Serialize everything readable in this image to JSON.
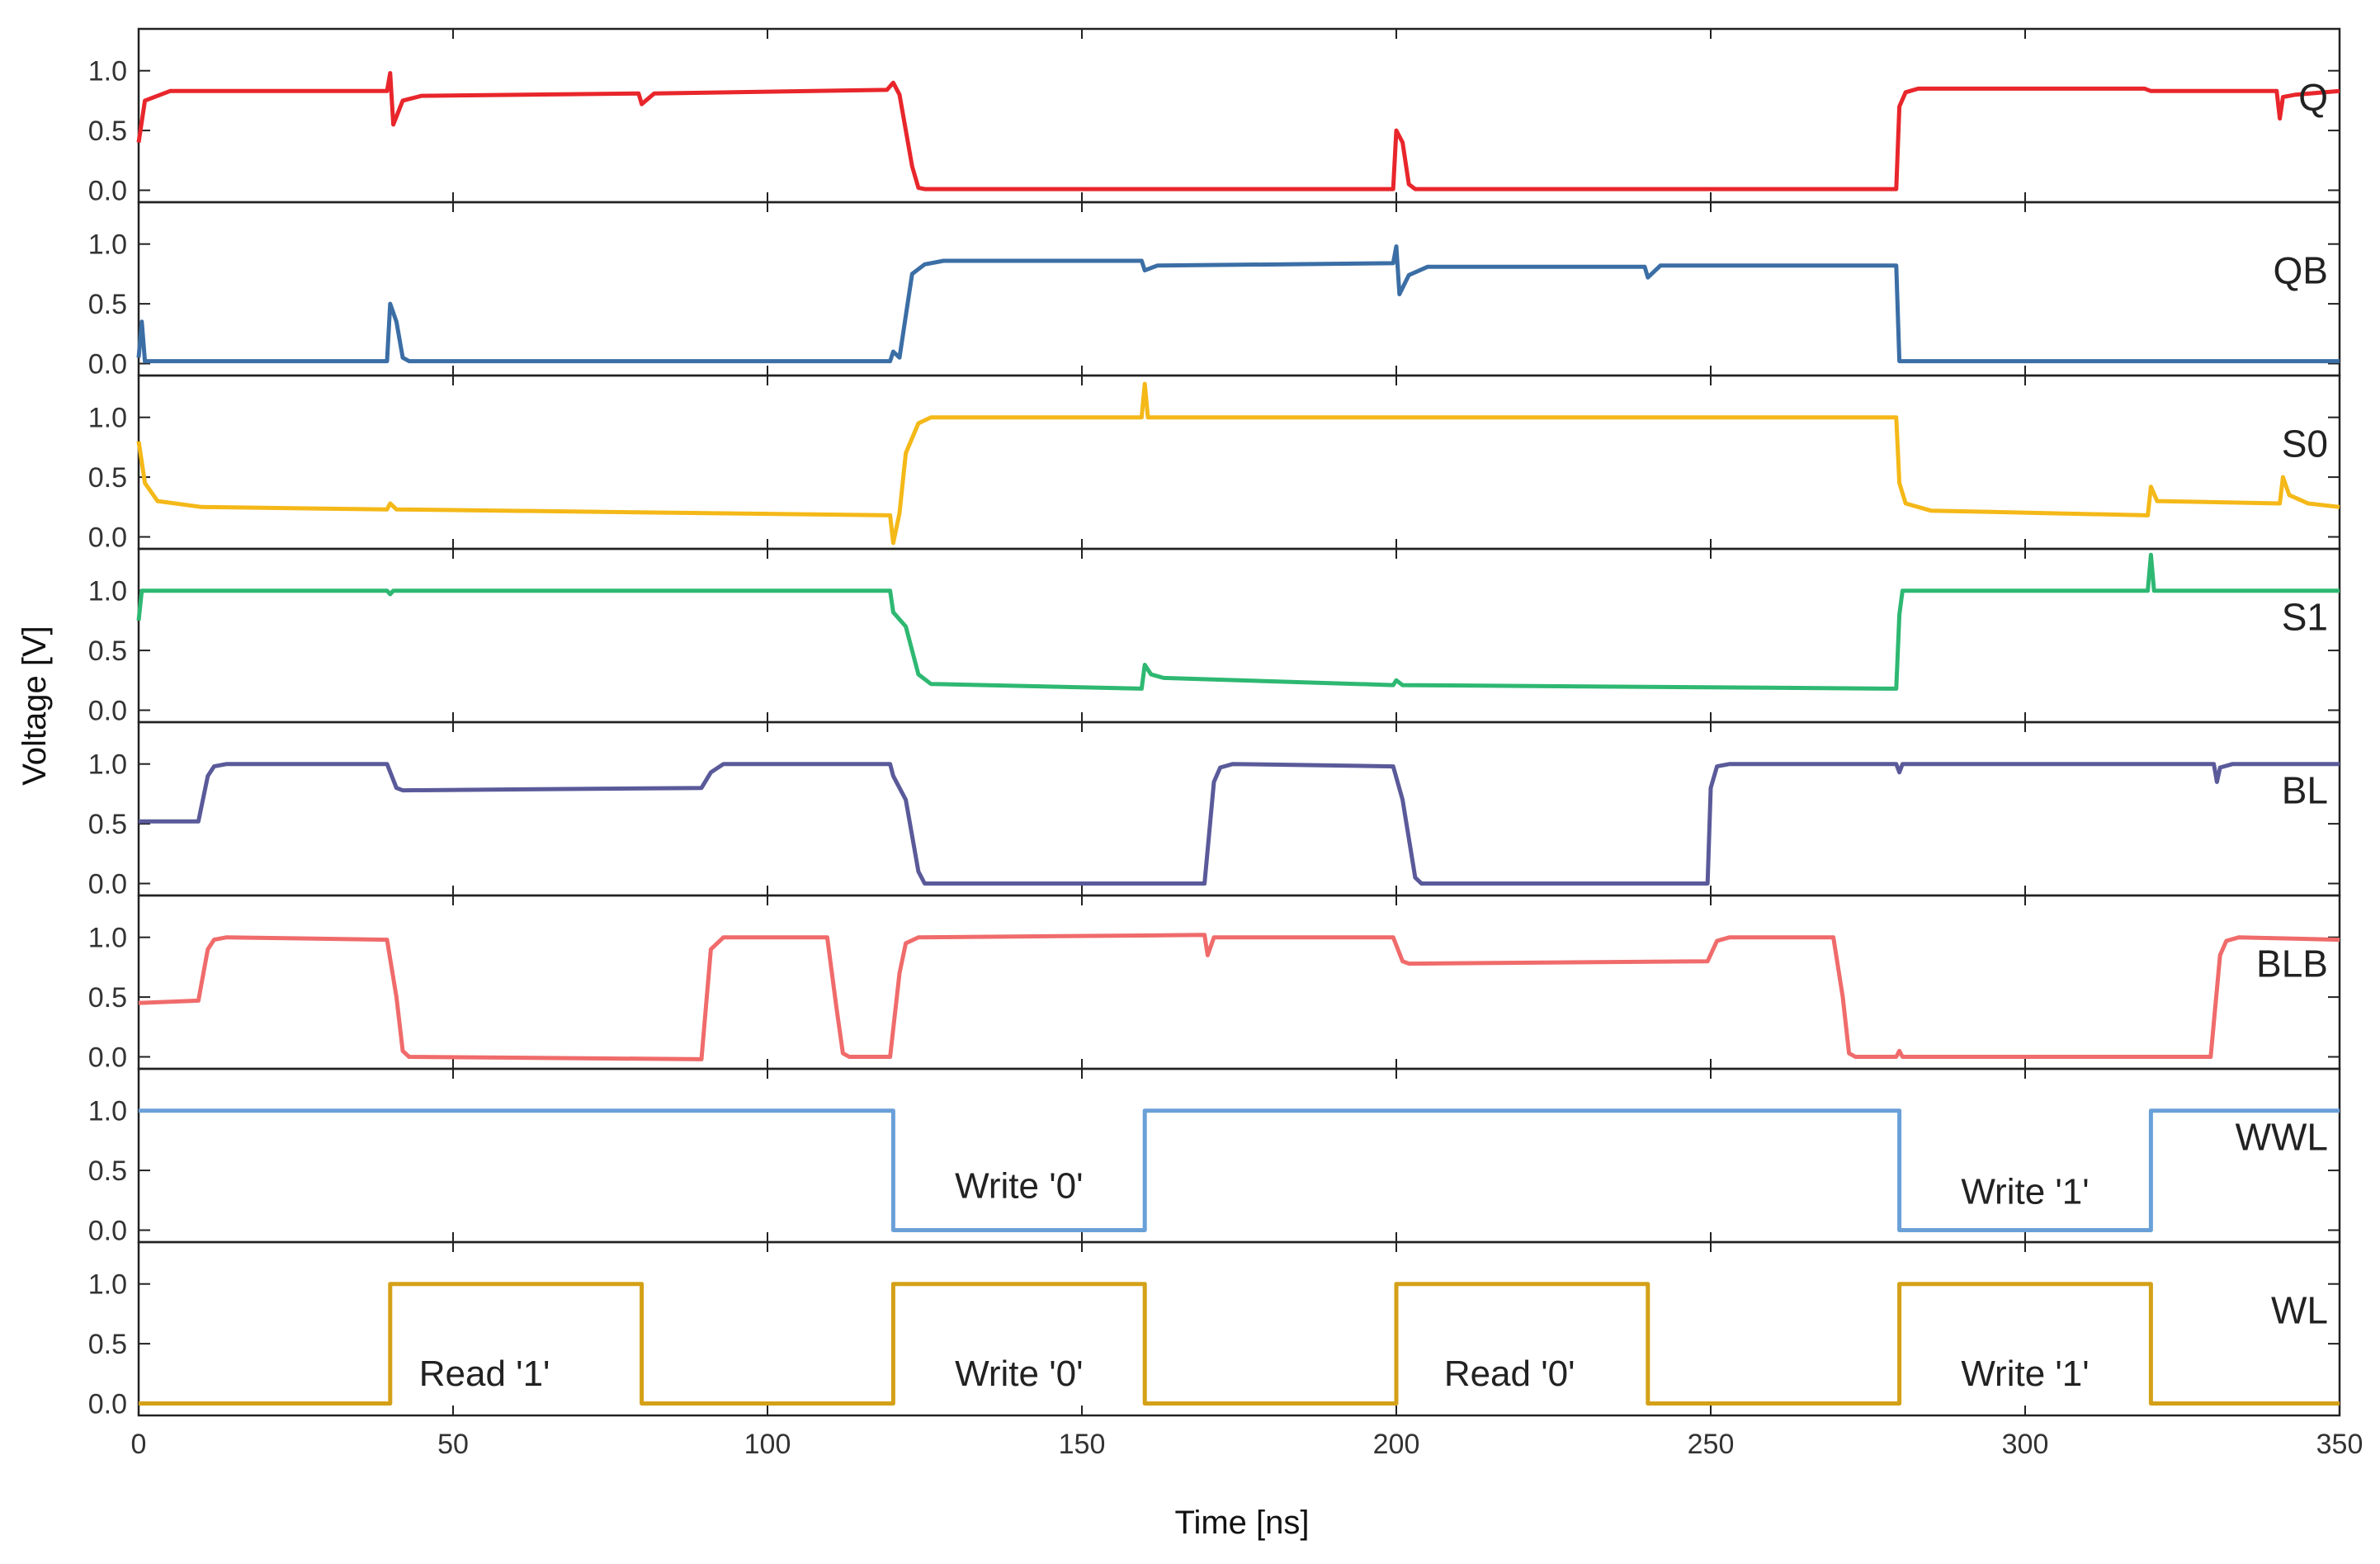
{
  "chart_data": {
    "type": "line",
    "title": "",
    "xlabel": "Time [ns]",
    "ylabel": "Voltage [V]",
    "xlim": [
      0,
      350
    ],
    "ylim": [
      -0.1,
      1.35
    ],
    "x_ticks": [
      0,
      50,
      100,
      150,
      200,
      250,
      300,
      350
    ],
    "x_tick_labels": [
      "0",
      "50",
      "100",
      "150",
      "200",
      "250",
      "300",
      "350"
    ],
    "y_ticks": [
      0,
      0.5,
      1
    ],
    "y_tick_labels": [
      "0.0",
      "0.5",
      "1.0"
    ],
    "grid": false,
    "series": [
      {
        "name": "Q",
        "color": "#e8262b",
        "points": [
          [
            0,
            0.4
          ],
          [
            1,
            0.75
          ],
          [
            5,
            0.83
          ],
          [
            39.5,
            0.83
          ],
          [
            40,
            0.98
          ],
          [
            40.5,
            0.55
          ],
          [
            42,
            0.75
          ],
          [
            45,
            0.79
          ],
          [
            79.5,
            0.81
          ],
          [
            80,
            0.72
          ],
          [
            82,
            0.81
          ],
          [
            119,
            0.84
          ],
          [
            120,
            0.9
          ],
          [
            121,
            0.8
          ],
          [
            123,
            0.2
          ],
          [
            124,
            0.02
          ],
          [
            125,
            0.01
          ],
          [
            199.5,
            0.01
          ],
          [
            200,
            0.5
          ],
          [
            201,
            0.4
          ],
          [
            202,
            0.05
          ],
          [
            203,
            0.01
          ],
          [
            279.5,
            0.01
          ],
          [
            280,
            0.7
          ],
          [
            281,
            0.82
          ],
          [
            283,
            0.85
          ],
          [
            319,
            0.85
          ],
          [
            320,
            0.83
          ],
          [
            340,
            0.83
          ],
          [
            340.5,
            0.6
          ],
          [
            341,
            0.78
          ],
          [
            343,
            0.8
          ],
          [
            350,
            0.83
          ]
        ]
      },
      {
        "name": "QB",
        "color": "#3b6ea5",
        "points": [
          [
            0,
            0.05
          ],
          [
            0.5,
            0.35
          ],
          [
            1,
            0.02
          ],
          [
            39.5,
            0.02
          ],
          [
            40,
            0.5
          ],
          [
            41,
            0.35
          ],
          [
            42,
            0.05
          ],
          [
            43,
            0.02
          ],
          [
            119.5,
            0.02
          ],
          [
            120,
            0.1
          ],
          [
            121,
            0.05
          ],
          [
            122,
            0.4
          ],
          [
            123,
            0.75
          ],
          [
            125,
            0.83
          ],
          [
            128,
            0.86
          ],
          [
            159.5,
            0.86
          ],
          [
            160,
            0.78
          ],
          [
            162,
            0.82
          ],
          [
            199.5,
            0.84
          ],
          [
            200,
            0.98
          ],
          [
            200.5,
            0.58
          ],
          [
            202,
            0.74
          ],
          [
            205,
            0.81
          ],
          [
            239.5,
            0.81
          ],
          [
            240,
            0.72
          ],
          [
            242,
            0.82
          ],
          [
            279.5,
            0.82
          ],
          [
            280,
            0.02
          ],
          [
            350,
            0.02
          ]
        ]
      },
      {
        "name": "S0",
        "color": "#f4b818",
        "points": [
          [
            0,
            0.8
          ],
          [
            1,
            0.45
          ],
          [
            3,
            0.3
          ],
          [
            10,
            0.25
          ],
          [
            39.5,
            0.23
          ],
          [
            40,
            0.28
          ],
          [
            41,
            0.23
          ],
          [
            119.5,
            0.18
          ],
          [
            120,
            -0.05
          ],
          [
            121,
            0.2
          ],
          [
            122,
            0.7
          ],
          [
            124,
            0.95
          ],
          [
            126,
            1.0
          ],
          [
            159.5,
            1.0
          ],
          [
            160,
            1.28
          ],
          [
            160.5,
            1.0
          ],
          [
            279.5,
            1.0
          ],
          [
            280,
            0.45
          ],
          [
            281,
            0.28
          ],
          [
            285,
            0.22
          ],
          [
            319.5,
            0.18
          ],
          [
            320,
            0.42
          ],
          [
            321,
            0.3
          ],
          [
            340.5,
            0.28
          ],
          [
            341,
            0.5
          ],
          [
            342,
            0.35
          ],
          [
            345,
            0.28
          ],
          [
            350,
            0.25
          ]
        ]
      },
      {
        "name": "S1",
        "color": "#2eb872",
        "points": [
          [
            0,
            0.75
          ],
          [
            0.5,
            1.0
          ],
          [
            39.5,
            1.0
          ],
          [
            40,
            0.97
          ],
          [
            40.5,
            1.0
          ],
          [
            119.5,
            1.0
          ],
          [
            120,
            0.82
          ],
          [
            122,
            0.7
          ],
          [
            124,
            0.3
          ],
          [
            126,
            0.22
          ],
          [
            159.5,
            0.18
          ],
          [
            160,
            0.38
          ],
          [
            161,
            0.3
          ],
          [
            163,
            0.27
          ],
          [
            199.5,
            0.21
          ],
          [
            200,
            0.25
          ],
          [
            201,
            0.21
          ],
          [
            279.5,
            0.18
          ],
          [
            280,
            0.8
          ],
          [
            280.5,
            1.0
          ],
          [
            319.5,
            1.0
          ],
          [
            320,
            1.3
          ],
          [
            320.5,
            1.0
          ],
          [
            350,
            1.0
          ]
        ]
      },
      {
        "name": "BL",
        "color": "#5a5a9a",
        "points": [
          [
            0,
            0.52
          ],
          [
            9.5,
            0.52
          ],
          [
            11,
            0.9
          ],
          [
            12,
            0.98
          ],
          [
            14,
            1.0
          ],
          [
            39.5,
            1.0
          ],
          [
            41,
            0.8
          ],
          [
            42,
            0.78
          ],
          [
            89.5,
            0.8
          ],
          [
            91,
            0.93
          ],
          [
            93,
            1.0
          ],
          [
            119.5,
            1.0
          ],
          [
            120,
            0.9
          ],
          [
            122,
            0.7
          ],
          [
            124,
            0.1
          ],
          [
            125,
            0.0
          ],
          [
            169.5,
            0.0
          ],
          [
            171,
            0.85
          ],
          [
            172,
            0.97
          ],
          [
            174,
            1.0
          ],
          [
            199.5,
            0.98
          ],
          [
            201,
            0.7
          ],
          [
            203,
            0.05
          ],
          [
            204,
            0.0
          ],
          [
            249.5,
            0.0
          ],
          [
            250,
            0.8
          ],
          [
            251,
            0.98
          ],
          [
            253,
            1.0
          ],
          [
            279.5,
            1.0
          ],
          [
            280,
            0.93
          ],
          [
            280.5,
            1.0
          ],
          [
            330,
            1.0
          ],
          [
            330.5,
            0.85
          ],
          [
            331,
            0.97
          ],
          [
            333,
            1.0
          ],
          [
            350,
            1.0
          ]
        ]
      },
      {
        "name": "BLB",
        "color": "#f06b6b",
        "points": [
          [
            0,
            0.45
          ],
          [
            9.5,
            0.47
          ],
          [
            11,
            0.9
          ],
          [
            12,
            0.98
          ],
          [
            14,
            1.0
          ],
          [
            39.5,
            0.98
          ],
          [
            41,
            0.5
          ],
          [
            42,
            0.05
          ],
          [
            43,
            0.0
          ],
          [
            89.5,
            -0.02
          ],
          [
            91,
            0.9
          ],
          [
            93,
            1.0
          ],
          [
            109.5,
            1.0
          ],
          [
            111,
            0.4
          ],
          [
            112,
            0.03
          ],
          [
            113,
            0.0
          ],
          [
            119.5,
            0.0
          ],
          [
            121,
            0.7
          ],
          [
            122,
            0.95
          ],
          [
            124,
            1.0
          ],
          [
            169.5,
            1.02
          ],
          [
            170,
            0.85
          ],
          [
            171,
            1.0
          ],
          [
            199.5,
            1.0
          ],
          [
            201,
            0.8
          ],
          [
            202,
            0.78
          ],
          [
            249.5,
            0.8
          ],
          [
            251,
            0.97
          ],
          [
            253,
            1.0
          ],
          [
            269.5,
            1.0
          ],
          [
            271,
            0.5
          ],
          [
            272,
            0.03
          ],
          [
            273,
            0.0
          ],
          [
            279.5,
            0.0
          ],
          [
            280,
            0.05
          ],
          [
            280.5,
            0.0
          ],
          [
            329.5,
            0.0
          ],
          [
            331,
            0.85
          ],
          [
            332,
            0.97
          ],
          [
            334,
            1.0
          ],
          [
            350,
            0.98
          ]
        ]
      },
      {
        "name": "WWL",
        "color": "#6aa0d8",
        "points": [
          [
            0,
            1.0
          ],
          [
            120,
            1.0
          ],
          [
            120,
            0.0
          ],
          [
            160,
            0.0
          ],
          [
            160,
            1.0
          ],
          [
            280,
            1.0
          ],
          [
            280,
            0.0
          ],
          [
            320,
            0.0
          ],
          [
            320,
            1.0
          ],
          [
            350,
            1.0
          ]
        ]
      },
      {
        "name": "WL",
        "color": "#d4a017",
        "points": [
          [
            0,
            0.0
          ],
          [
            40,
            0.0
          ],
          [
            40,
            1.0
          ],
          [
            80,
            1.0
          ],
          [
            80,
            0.0
          ],
          [
            120,
            0.0
          ],
          [
            120,
            1.0
          ],
          [
            160,
            1.0
          ],
          [
            160,
            0.0
          ],
          [
            200,
            0.0
          ],
          [
            200,
            1.0
          ],
          [
            240,
            1.0
          ],
          [
            240,
            0.0
          ],
          [
            280,
            0.0
          ],
          [
            280,
            1.0
          ],
          [
            320,
            1.0
          ],
          [
            320,
            0.0
          ],
          [
            350,
            0.0
          ]
        ]
      }
    ],
    "annotations": [
      {
        "panel": "WWL",
        "text": "Write '0'",
        "x": 140,
        "y": 0.27
      },
      {
        "panel": "WWL",
        "text": "Write '1'",
        "x": 300,
        "y": 0.22
      },
      {
        "panel": "WL",
        "text": "Read '1'",
        "x": 55,
        "y": 0.15
      },
      {
        "panel": "WL",
        "text": "Write '0'",
        "x": 140,
        "y": 0.15
      },
      {
        "panel": "WL",
        "text": "Read '0'",
        "x": 218,
        "y": 0.15
      },
      {
        "panel": "WL",
        "text": "Write '1'",
        "x": 300,
        "y": 0.15
      }
    ]
  }
}
